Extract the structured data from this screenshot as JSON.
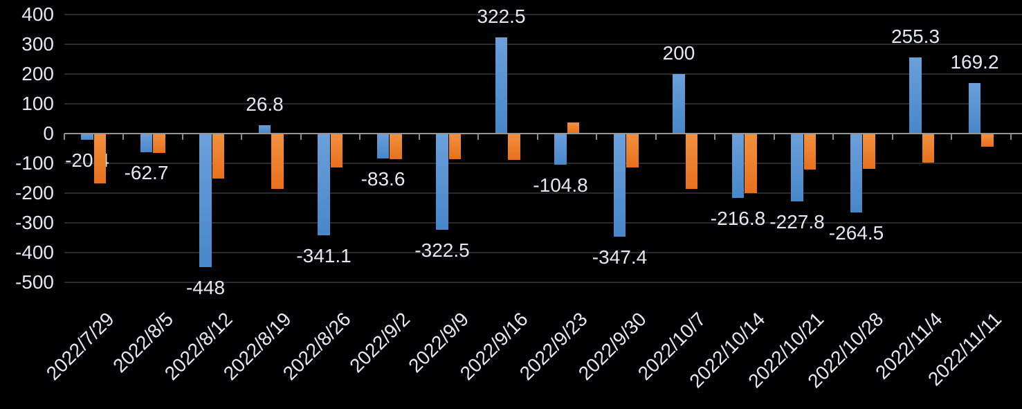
{
  "chart_data": {
    "type": "bar",
    "title": "",
    "xlabel": "",
    "ylabel": "",
    "categories": [
      "2022/7/29",
      "2022/8/5",
      "2022/8/12",
      "2022/8/19",
      "2022/8/26",
      "2022/9/2",
      "2022/9/9",
      "2022/9/16",
      "2022/9/23",
      "2022/9/30",
      "2022/10/7",
      "2022/10/14",
      "2022/10/21",
      "2022/10/28",
      "2022/11/4",
      "2022/11/11"
    ],
    "series": [
      {
        "name": "blue-series",
        "color_top": "#6BA0DA",
        "color_bottom": "#4787CA",
        "values": [
          -20.4,
          -62.7,
          -448,
          26.8,
          -341.1,
          -83.6,
          -322.5,
          322.5,
          -104.8,
          -347.4,
          200,
          -216.8,
          -227.8,
          -264.5,
          255.3,
          169.2
        ],
        "data_labels": [
          "-20.4",
          "-62.7",
          "-448",
          "26.8",
          "-341.1",
          "-83.6",
          "-322.5",
          "322.5",
          "-104.8",
          "-347.4",
          "200",
          "-216.8",
          "-227.8",
          "-264.5",
          "255.3",
          "169.2"
        ],
        "labels_visible": true
      },
      {
        "name": "orange-series",
        "color_top": "#F1913F",
        "color_bottom": "#E8701C",
        "values": [
          -168,
          -65,
          -150,
          -186,
          -113,
          -85,
          -85,
          -88,
          38,
          -115,
          -186,
          -200,
          -120,
          -119,
          -98,
          -45
        ],
        "values_estimated": true,
        "labels_visible": false
      }
    ],
    "ylim": [
      -500,
      400
    ],
    "yticks": [
      400,
      300,
      200,
      100,
      0,
      -100,
      -200,
      -300,
      -400,
      -500
    ],
    "grid": true,
    "legend": false,
    "x_tick_rotation_deg": -45,
    "colors": {
      "background": "#000000",
      "gridline": "#2A2A2A",
      "axis_line": "#959595",
      "tick_mark": "#8C8C8C",
      "text": "#E3E9F2"
    }
  }
}
